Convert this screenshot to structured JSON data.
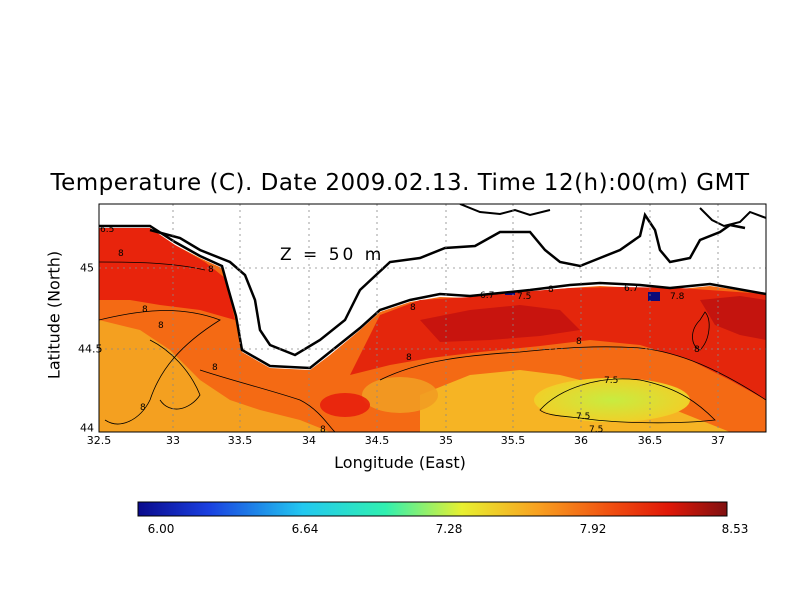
{
  "title": "Temperature (C). Date 2009.02.13. Time 12(h):00(m) GMT",
  "depth_label": "Z = 50 m",
  "x_axis": {
    "label": "Longitude (East)",
    "ticks": [
      "32.5",
      "33",
      "33.5",
      "34",
      "34.5",
      "35",
      "35.5",
      "36",
      "36.5",
      "37"
    ]
  },
  "y_axis": {
    "label": "Latitude (North)",
    "ticks": [
      "44",
      "44.5",
      "45"
    ]
  },
  "colorbar": {
    "min": 6.0,
    "max": 8.53,
    "labels": [
      "6.00",
      "6.64",
      "7.28",
      "7.92",
      "8.53"
    ]
  },
  "contour_labels": [
    "8",
    "8",
    "8",
    "8",
    "8",
    "8",
    "8",
    "8",
    "8",
    "8",
    "7.5",
    "7.5",
    "7.5",
    "7.5",
    "7.5",
    "7.8",
    "6.5",
    "8",
    "6.7",
    "6.7"
  ],
  "colors": {
    "land": "#ffffff",
    "coastline": "#000000",
    "warm": "#e8200a",
    "hot": "#c40f0f",
    "mid": "#f46010",
    "cool": "#f6c21c",
    "cold": "#c8ea3c"
  }
}
